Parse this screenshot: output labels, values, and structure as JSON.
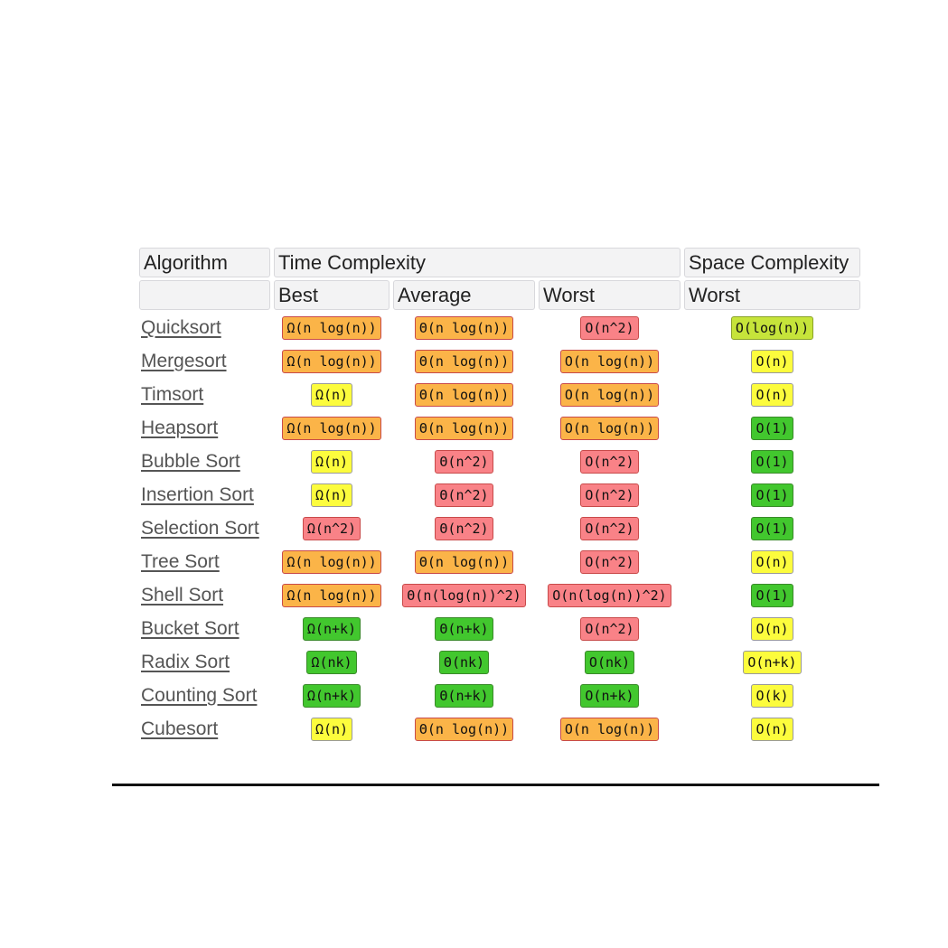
{
  "header": {
    "algorithm": "Algorithm",
    "time_complexity": "Time Complexity",
    "space_complexity": "Space Complexity",
    "best": "Best",
    "average": "Average",
    "worst": "Worst",
    "space_worst": "Worst"
  },
  "colors": {
    "orange": "#fbb448",
    "red": "#f98287",
    "yellow": "#fcfc3d",
    "green": "#42c72e",
    "lime": "#c6e43a"
  },
  "rows": [
    {
      "name": "Quicksort",
      "best": "Ω(n log(n))",
      "best_color": "orange",
      "average": "Θ(n log(n))",
      "average_color": "orange",
      "worst": "O(n^2)",
      "worst_color": "red",
      "space": "O(log(n))",
      "space_color": "lime"
    },
    {
      "name": "Mergesort",
      "best": "Ω(n log(n))",
      "best_color": "orange",
      "average": "Θ(n log(n))",
      "average_color": "orange",
      "worst": "O(n log(n))",
      "worst_color": "orange",
      "space": "O(n)",
      "space_color": "yellow"
    },
    {
      "name": "Timsort",
      "best": "Ω(n)",
      "best_color": "yellow",
      "average": "Θ(n log(n))",
      "average_color": "orange",
      "worst": "O(n log(n))",
      "worst_color": "orange",
      "space": "O(n)",
      "space_color": "yellow"
    },
    {
      "name": "Heapsort",
      "best": "Ω(n log(n))",
      "best_color": "orange",
      "average": "Θ(n log(n))",
      "average_color": "orange",
      "worst": "O(n log(n))",
      "worst_color": "orange",
      "space": "O(1)",
      "space_color": "green"
    },
    {
      "name": "Bubble Sort",
      "best": "Ω(n)",
      "best_color": "yellow",
      "average": "Θ(n^2)",
      "average_color": "red",
      "worst": "O(n^2)",
      "worst_color": "red",
      "space": "O(1)",
      "space_color": "green"
    },
    {
      "name": "Insertion Sort",
      "best": "Ω(n)",
      "best_color": "yellow",
      "average": "Θ(n^2)",
      "average_color": "red",
      "worst": "O(n^2)",
      "worst_color": "red",
      "space": "O(1)",
      "space_color": "green"
    },
    {
      "name": "Selection Sort",
      "best": "Ω(n^2)",
      "best_color": "red",
      "average": "Θ(n^2)",
      "average_color": "red",
      "worst": "O(n^2)",
      "worst_color": "red",
      "space": "O(1)",
      "space_color": "green"
    },
    {
      "name": "Tree Sort",
      "best": "Ω(n log(n))",
      "best_color": "orange",
      "average": "Θ(n log(n))",
      "average_color": "orange",
      "worst": "O(n^2)",
      "worst_color": "red",
      "space": "O(n)",
      "space_color": "yellow"
    },
    {
      "name": "Shell Sort",
      "best": "Ω(n log(n))",
      "best_color": "orange",
      "average": "Θ(n(log(n))^2)",
      "average_color": "red",
      "worst": "O(n(log(n))^2)",
      "worst_color": "red",
      "space": "O(1)",
      "space_color": "green"
    },
    {
      "name": "Bucket Sort",
      "best": "Ω(n+k)",
      "best_color": "green",
      "average": "Θ(n+k)",
      "average_color": "green",
      "worst": "O(n^2)",
      "worst_color": "red",
      "space": "O(n)",
      "space_color": "yellow"
    },
    {
      "name": "Radix Sort",
      "best": "Ω(nk)",
      "best_color": "green",
      "average": "Θ(nk)",
      "average_color": "green",
      "worst": "O(nk)",
      "worst_color": "green",
      "space": "O(n+k)",
      "space_color": "yellow"
    },
    {
      "name": "Counting Sort",
      "best": "Ω(n+k)",
      "best_color": "green",
      "average": "Θ(n+k)",
      "average_color": "green",
      "worst": "O(n+k)",
      "worst_color": "green",
      "space": "O(k)",
      "space_color": "yellow"
    },
    {
      "name": "Cubesort",
      "best": "Ω(n)",
      "best_color": "yellow",
      "average": "Θ(n log(n))",
      "average_color": "orange",
      "worst": "O(n log(n))",
      "worst_color": "orange",
      "space": "O(n)",
      "space_color": "yellow"
    }
  ]
}
